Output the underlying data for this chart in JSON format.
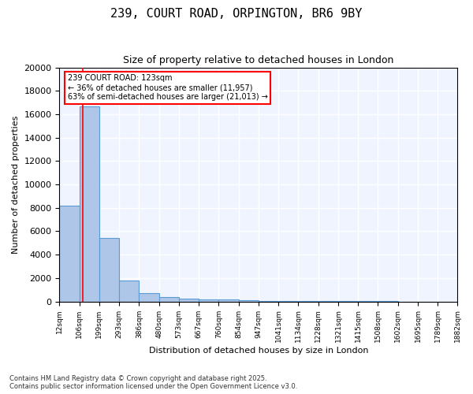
{
  "title": "239, COURT ROAD, ORPINGTON, BR6 9BY",
  "subtitle": "Size of property relative to detached houses in London",
  "xlabel": "Distribution of detached houses by size in London",
  "ylabel": "Number of detached properties",
  "bar_color": "#aec6e8",
  "bar_edge_color": "#5b9bd5",
  "background_color": "#f0f4ff",
  "grid_color": "#ffffff",
  "bin_labels": [
    "12sqm",
    "106sqm",
    "199sqm",
    "293sqm",
    "386sqm",
    "480sqm",
    "573sqm",
    "667sqm",
    "760sqm",
    "854sqm",
    "947sqm",
    "1041sqm",
    "1134sqm",
    "1228sqm",
    "1321sqm",
    "1415sqm",
    "1508sqm",
    "1602sqm",
    "1695sqm",
    "1789sqm",
    "1882sqm"
  ],
  "bin_edges": [
    12,
    106,
    199,
    293,
    386,
    480,
    573,
    667,
    760,
    854,
    947,
    1041,
    1134,
    1228,
    1321,
    1415,
    1508,
    1602,
    1695,
    1789,
    1882
  ],
  "bar_heights": [
    8200,
    16700,
    5400,
    1800,
    700,
    350,
    250,
    200,
    150,
    80,
    60,
    45,
    35,
    25,
    18,
    12,
    8,
    6,
    4,
    2
  ],
  "red_line_x": 123,
  "annotation_title": "239 COURT ROAD: 123sqm",
  "annotation_line1": "← 36% of detached houses are smaller (11,957)",
  "annotation_line2": "63% of semi-detached houses are larger (21,013) →",
  "ylim": [
    0,
    20000
  ],
  "yticks": [
    0,
    2000,
    4000,
    6000,
    8000,
    10000,
    12000,
    14000,
    16000,
    18000,
    20000
  ],
  "footnote1": "Contains HM Land Registry data © Crown copyright and database right 2025.",
  "footnote2": "Contains public sector information licensed under the Open Government Licence v3.0."
}
